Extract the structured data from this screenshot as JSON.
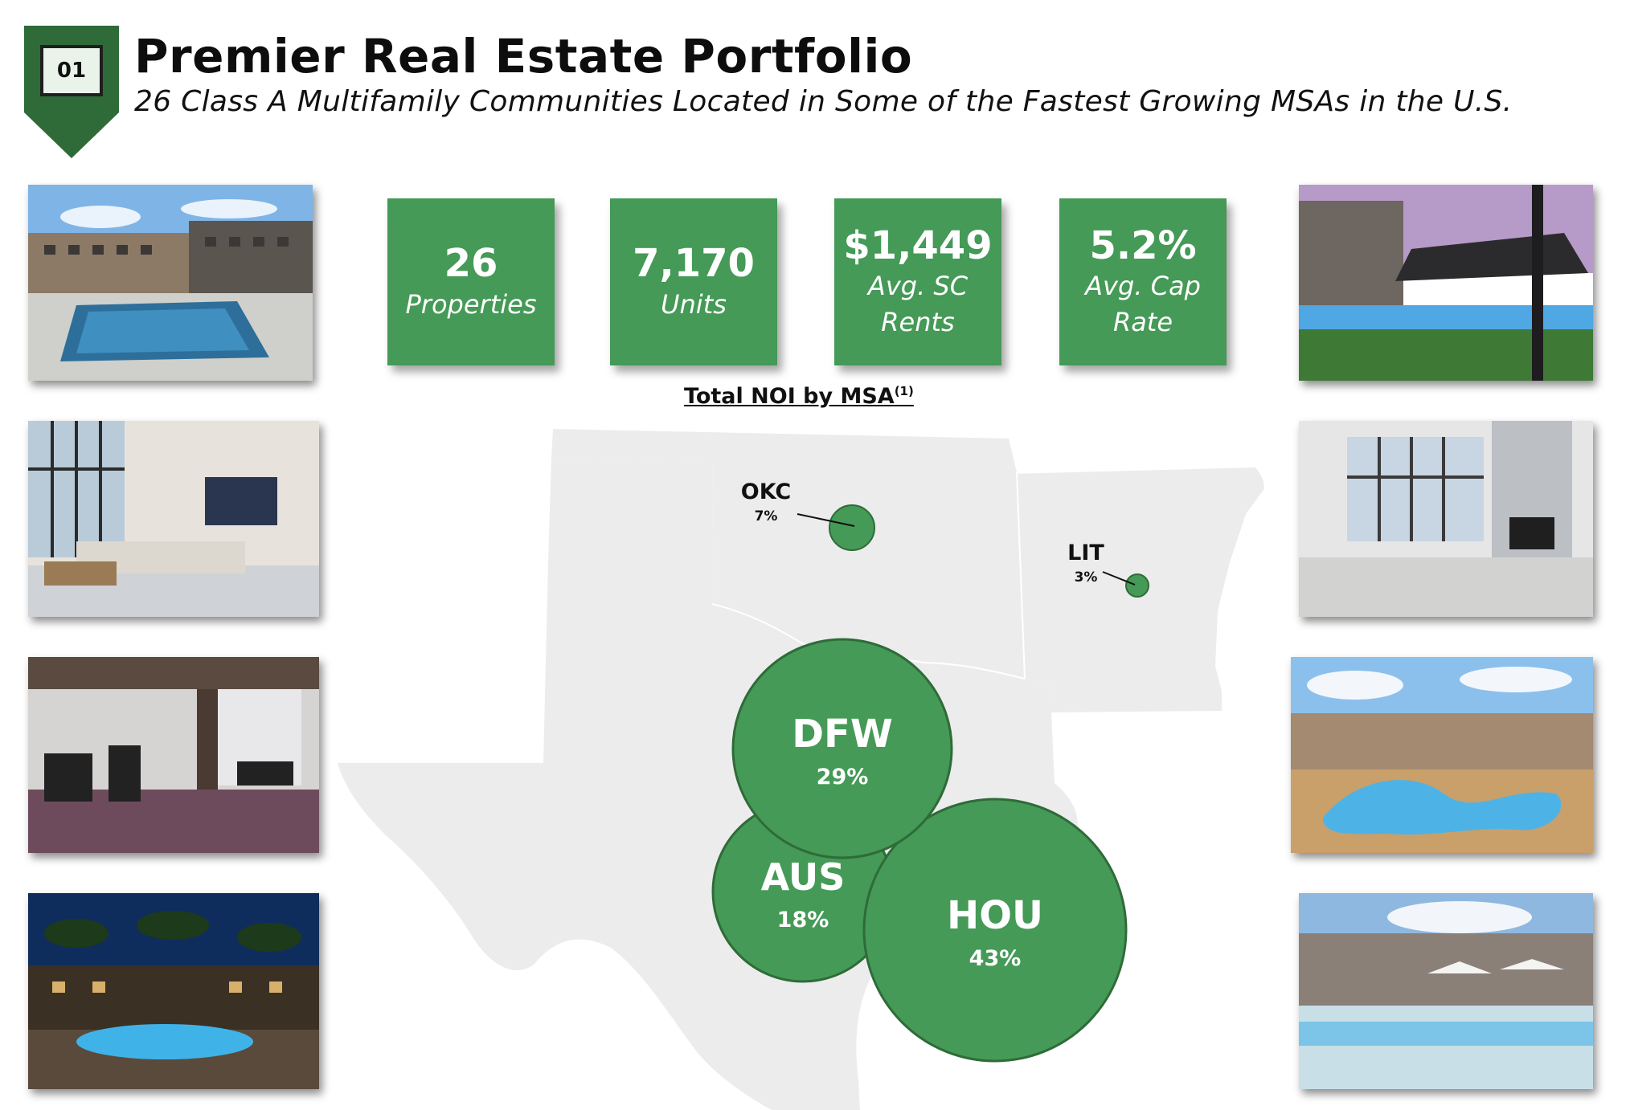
{
  "header": {
    "section_number": "01",
    "title": "Premier Real Estate Portfolio",
    "subtitle": "26 Class A Multifamily Communities Located in Some of the Fastest Growing MSAs in the U.S."
  },
  "stats": [
    {
      "value": "26",
      "label_line1": "Properties",
      "label_line2": ""
    },
    {
      "value": "7,170",
      "label_line1": "Units",
      "label_line2": ""
    },
    {
      "value": "$1,449",
      "label_line1": "Avg. SC",
      "label_line2": "Rents"
    },
    {
      "value": "5.2%",
      "label_line1": "Avg. Cap",
      "label_line2": "Rate"
    }
  ],
  "map": {
    "title": "Total NOI by MSA",
    "footnote": "(1)",
    "msas": [
      {
        "code": "OKC",
        "share": "7%"
      },
      {
        "code": "LIT",
        "share": "3%"
      },
      {
        "code": "DFW",
        "share": "29%"
      },
      {
        "code": "AUS",
        "share": "18%"
      },
      {
        "code": "HOU",
        "share": "43%"
      }
    ]
  },
  "colors": {
    "accent_green": "#449a56",
    "dark_green": "#2f6b39",
    "map_gray": "#ececed"
  }
}
